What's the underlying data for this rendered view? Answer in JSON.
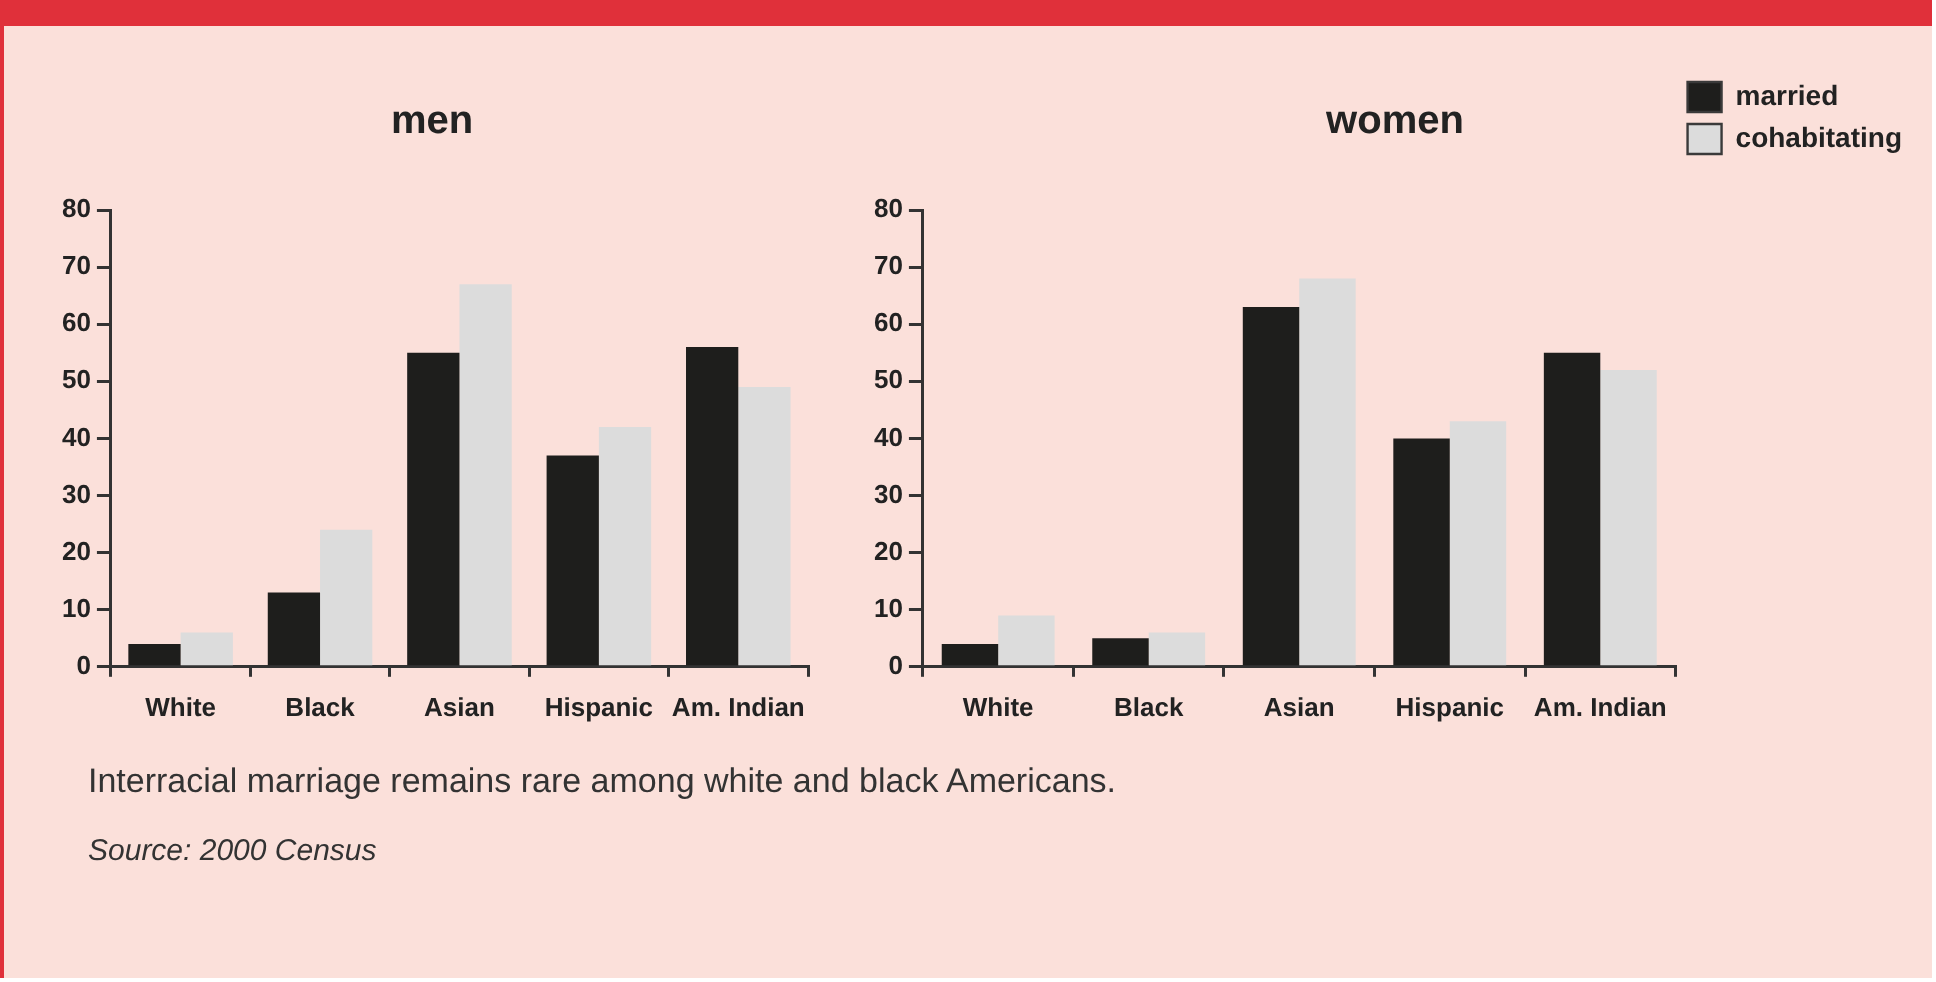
{
  "chart_data": [
    {
      "type": "bar",
      "title": "men",
      "categories": [
        "White",
        "Black",
        "Asian",
        "Hispanic",
        "Am. Indian"
      ],
      "series": [
        {
          "color": "#1e1e1c",
          "values": [
            4,
            13,
            55,
            37,
            56
          ]
        },
        {
          "color": "#dcdcdc",
          "values": [
            6,
            24,
            67,
            42,
            49
          ]
        }
      ],
      "ylim": [
        0,
        80
      ],
      "yticks": [
        0,
        10,
        20,
        30,
        40,
        50,
        60,
        70,
        80
      ],
      "grid": false,
      "legend": false,
      "annotations": [
        "Interracial marriage remains rare among white and black Americans.",
        "Source: 2000 Census"
      ]
    },
    {
      "type": "bar",
      "title": "women",
      "categories": [
        "White",
        "Black",
        "Asian",
        "Hispanic",
        "Am. Indian"
      ],
      "series": [
        {
          "name": "married",
          "color": "#1e1e1c",
          "values": [
            4,
            5,
            63,
            40,
            55
          ]
        },
        {
          "name": "cohabitating",
          "color": "#dcdcdc",
          "values": [
            9,
            6,
            68,
            43,
            52
          ]
        }
      ],
      "ylim": [
        0,
        80
      ],
      "yticks": [
        0,
        10,
        20,
        30,
        40,
        50,
        60,
        70,
        80
      ],
      "grid": false,
      "legend": "right"
    }
  ]
}
